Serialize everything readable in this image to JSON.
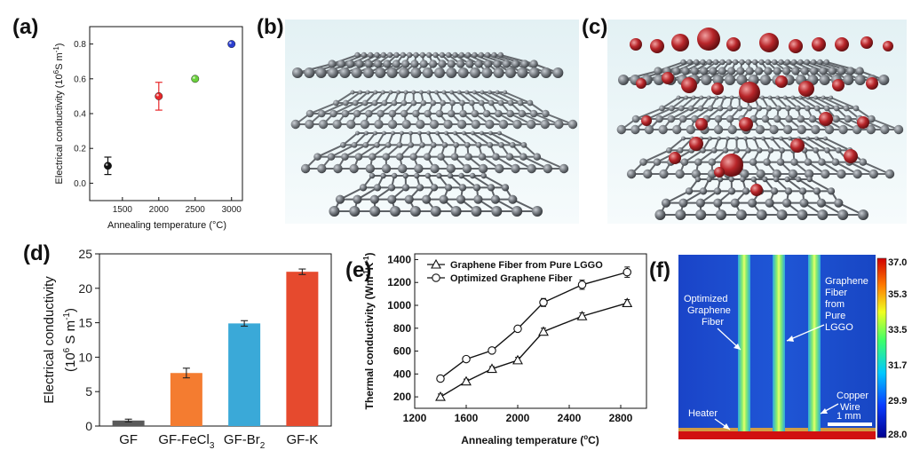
{
  "panels": {
    "a": "(a)",
    "b": "(b)",
    "c": "(c)",
    "d": "(d)",
    "e": "(e)",
    "f": "(f)"
  },
  "chart_data": [
    {
      "id": "a",
      "type": "scatter",
      "xlabel": "Annealing temperature (°C)",
      "ylabel": "Electrical conductivity (10",
      "ylabel_sup": "6",
      "ylabel_tail": "S m",
      "ylabel_tail_sup": "-1",
      "ylabel_close": ")",
      "xlim": [
        1050,
        3150
      ],
      "ylim": [
        -0.1,
        0.9
      ],
      "xticks": [
        1500,
        2000,
        2500,
        3000
      ],
      "yticks": [
        0.0,
        0.2,
        0.4,
        0.6,
        0.8
      ],
      "ytick_labels": [
        "0.0",
        "0.2",
        "0.4",
        "0.6",
        "0.8"
      ],
      "points": [
        {
          "x": 1300,
          "y": 0.1,
          "err": 0.05,
          "color": "#111111"
        },
        {
          "x": 2000,
          "y": 0.5,
          "err": 0.08,
          "color": "#e8282b"
        },
        {
          "x": 2500,
          "y": 0.6,
          "err": 0.0,
          "color": "#6ad13c"
        },
        {
          "x": 3000,
          "y": 0.8,
          "err": 0.0,
          "color": "#2c3fd0"
        }
      ]
    },
    {
      "id": "d",
      "type": "bar",
      "categories": [
        "GF",
        "GF-FeCl",
        "GF-Br",
        "GF-K"
      ],
      "category_subs": [
        "",
        "3",
        "2",
        ""
      ],
      "values": [
        0.8,
        7.7,
        14.9,
        22.4
      ],
      "errors": [
        0.2,
        0.7,
        0.4,
        0.4
      ],
      "colors": [
        "#5a5a5a",
        "#f47c30",
        "#3aa9d8",
        "#e64a2e"
      ],
      "ylabel_line1": "Electrical conductivity",
      "ylabel_line2": "(10",
      "ylabel_line2_sup": "6",
      "ylabel_line2_tail": " S m",
      "ylabel_line2_tail_sup": "-1",
      "ylabel_line2_close": ")",
      "ylim": [
        0,
        25
      ],
      "yticks": [
        0,
        5,
        10,
        15,
        20,
        25
      ]
    },
    {
      "id": "e",
      "type": "line",
      "xlabel": "Annealing temperature (",
      "xlabel_sup": "o",
      "xlabel_tail": "C)",
      "ylabel": "Thermal conductivity (Wm",
      "ylabel_sup1": "-1",
      "ylabel_mid": "K",
      "ylabel_sup2": "-1",
      "ylabel_close": ")",
      "xlim": [
        1200,
        3000
      ],
      "ylim": [
        100,
        1450
      ],
      "xticks": [
        1200,
        1600,
        2000,
        2400,
        2800
      ],
      "yticks": [
        200,
        400,
        600,
        800,
        1000,
        1200,
        1400
      ],
      "series": [
        {
          "name": "Graphene Fiber from Pure LGGO",
          "marker": "triangle",
          "x": [
            1400,
            1600,
            1800,
            2000,
            2200,
            2500,
            2850
          ],
          "values": [
            200,
            335,
            445,
            520,
            770,
            905,
            1020
          ],
          "errors": [
            25,
            20,
            20,
            25,
            30,
            30,
            30
          ]
        },
        {
          "name": "Optimized Graphene Fiber",
          "marker": "circle",
          "x": [
            1400,
            1600,
            1800,
            2000,
            2200,
            2500,
            2850
          ],
          "values": [
            360,
            530,
            605,
            795,
            1025,
            1180,
            1290
          ],
          "errors": [
            15,
            15,
            15,
            20,
            35,
            40,
            45
          ]
        }
      ]
    }
  ],
  "panel_f": {
    "colorbar_labels": [
      "37.0",
      "35.3",
      "33.5",
      "31.7",
      "29.9",
      "28.0"
    ],
    "annotations": {
      "optimized": [
        "Optimized",
        "Graphene",
        "Fiber"
      ],
      "pure": [
        "Graphene",
        "Fiber",
        "from",
        "Pure",
        "LGGO"
      ],
      "copper": [
        "Copper",
        "Wire"
      ],
      "heater": "Heater",
      "scale": "1 mm"
    }
  }
}
